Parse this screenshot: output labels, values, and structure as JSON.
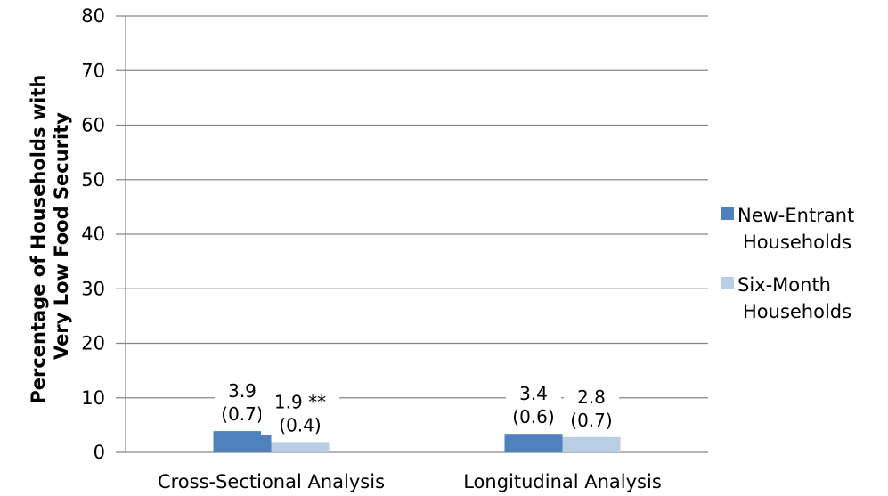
{
  "chart_data": {
    "type": "bar",
    "categories": [
      "Cross-Sectional Analysis",
      "Longitudinal Analysis"
    ],
    "series": [
      {
        "name": "New-Entrant Households",
        "legend_lines": [
          "New-Entrant",
          "Households"
        ],
        "color": "#4f81bd",
        "values": [
          3.9,
          3.4
        ],
        "labels": [
          [
            "3.9",
            "(0.7)"
          ],
          [
            "3.4",
            "(0.6)"
          ]
        ]
      },
      {
        "name": "Six-Month Households",
        "legend_lines": [
          "Six-Month",
          "Households"
        ],
        "color": "#b9cde5",
        "values": [
          1.9,
          2.8
        ],
        "labels": [
          [
            "1.9 **",
            "(0.4)"
          ],
          [
            "2.8",
            "(0.7)"
          ]
        ]
      }
    ],
    "ylabel_lines": [
      "Percentage of Households with",
      "Very Low Food Security"
    ],
    "xlabel": "",
    "ylim": [
      0,
      80
    ],
    "yticks": [
      0,
      10,
      20,
      30,
      40,
      50,
      60,
      70,
      80
    ],
    "grid": true,
    "legend": "right"
  }
}
